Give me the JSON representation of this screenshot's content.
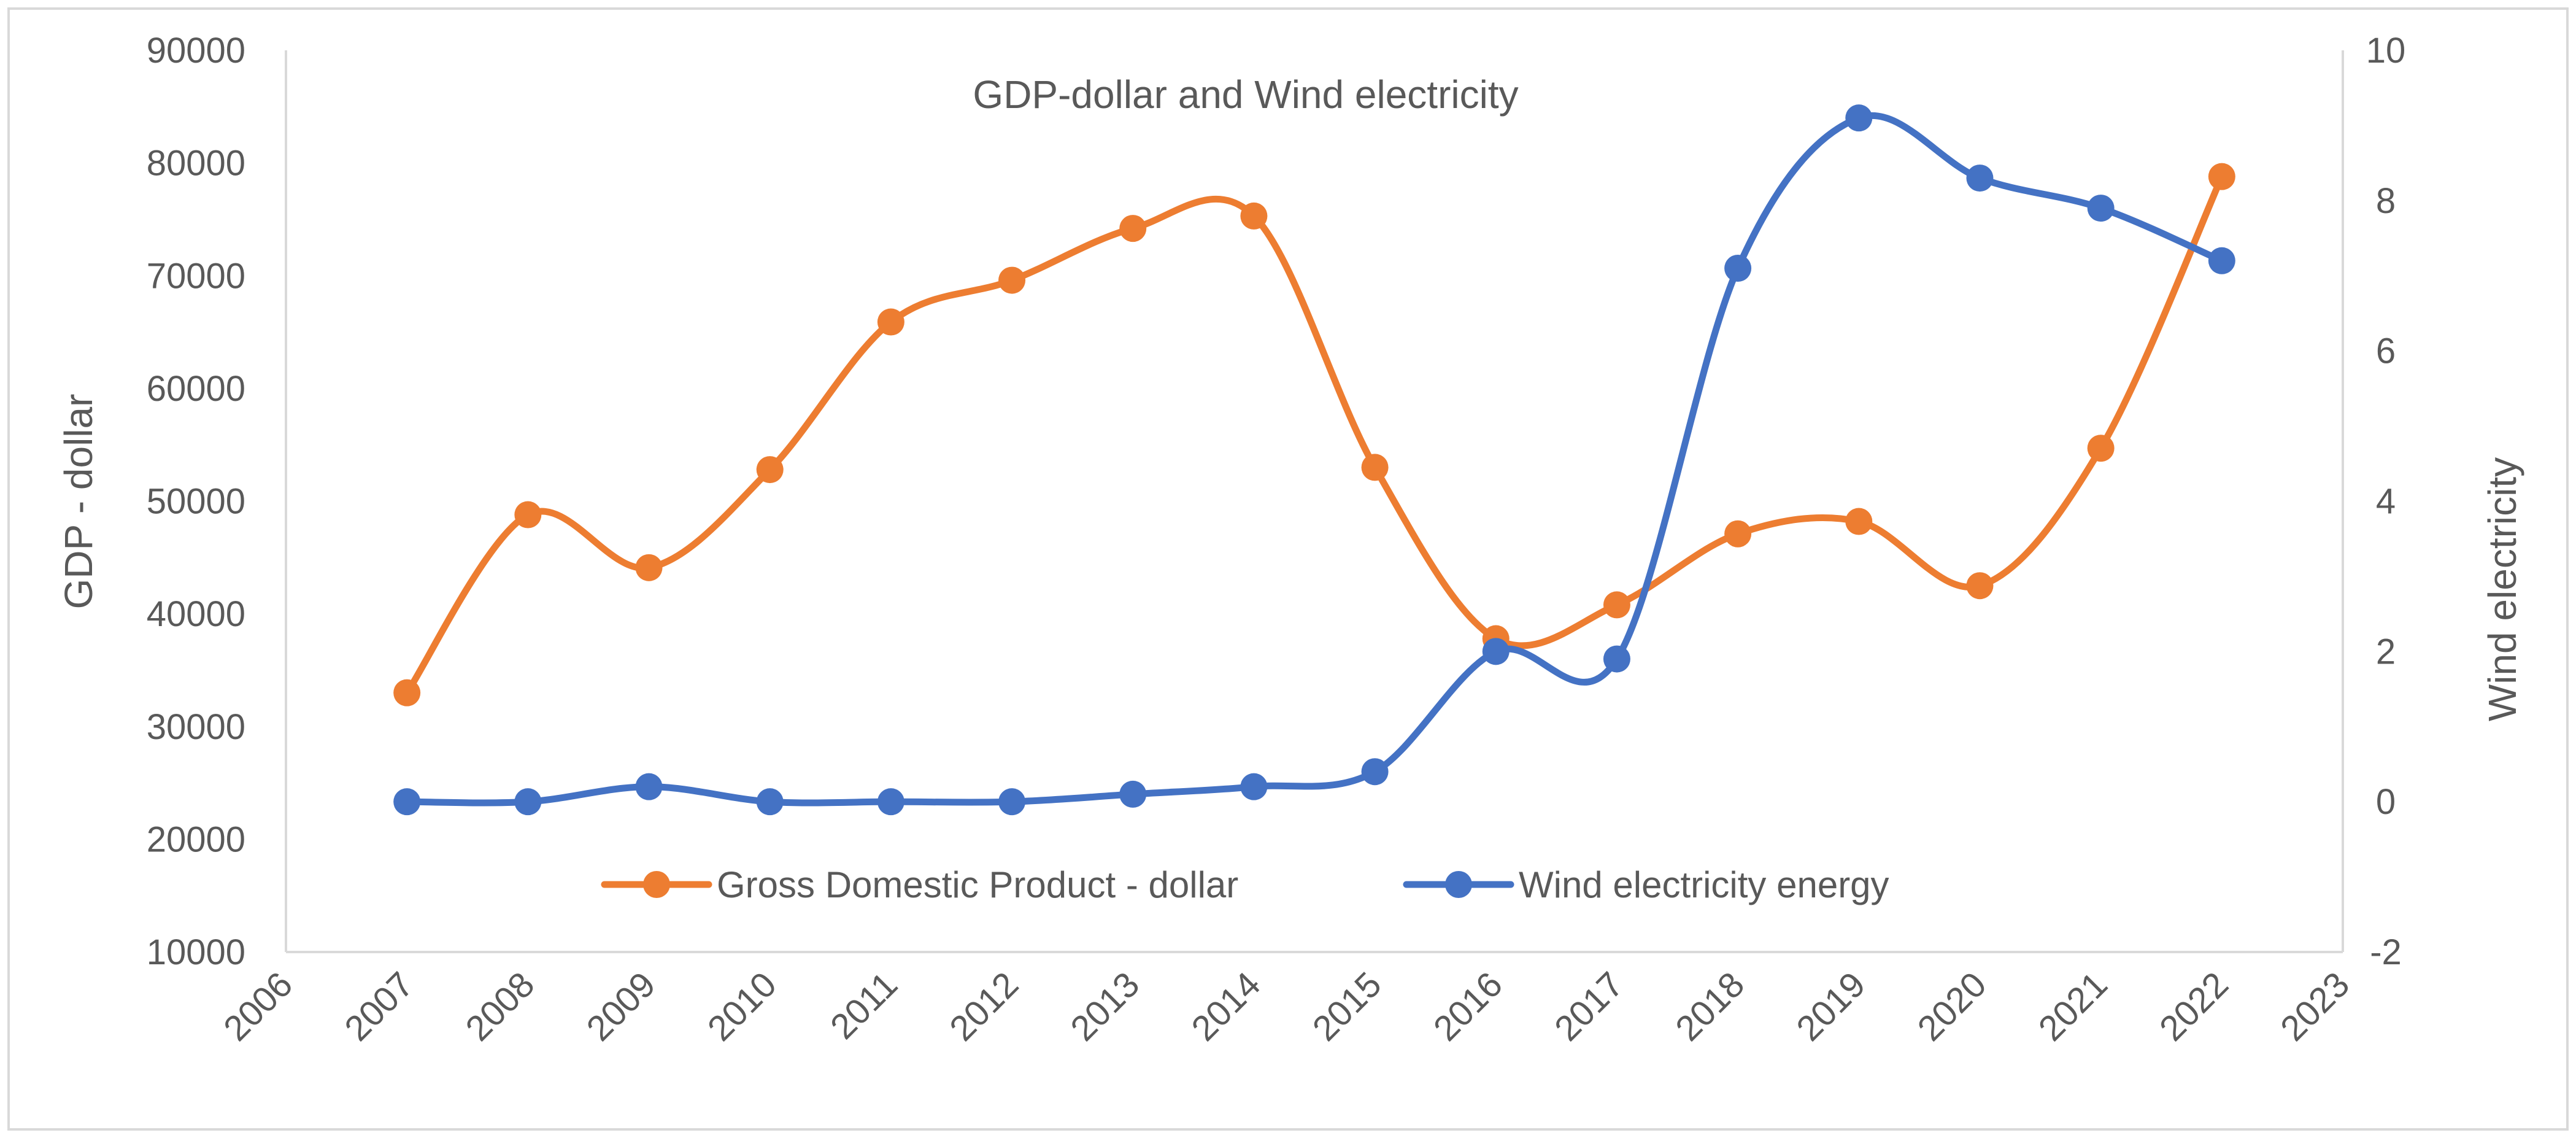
{
  "chart_data": {
    "type": "line",
    "title": "GDP-dollar and Wind electricity",
    "xlabel": "",
    "ylabel": "GDP - dollar",
    "y2label": "Wind electricity",
    "xlim": [
      2006,
      2023
    ],
    "x_ticks": [
      "2006",
      "2007",
      "2008",
      "2009",
      "2010",
      "2011",
      "2012",
      "2013",
      "2014",
      "2015",
      "2016",
      "2017",
      "2018",
      "2019",
      "2020",
      "2021",
      "2022",
      "2023"
    ],
    "ylim": [
      10000,
      90000
    ],
    "y_ticks": [
      "10000",
      "20000",
      "30000",
      "40000",
      "50000",
      "60000",
      "70000",
      "80000",
      "90000"
    ],
    "y2lim": [
      -2,
      10
    ],
    "y2_ticks": [
      "-2",
      "0",
      "2",
      "4",
      "6",
      "8",
      "10"
    ],
    "grid": false,
    "legend_position": "bottom-inside",
    "smooth": true,
    "x": [
      2007,
      2008,
      2009,
      2010,
      2011,
      2012,
      2013,
      2014,
      2015,
      2016,
      2017,
      2018,
      2019,
      2020,
      2021,
      2022
    ],
    "series": [
      {
        "name": "Gross Domestic Product - dollar",
        "axis": "left",
        "color": "#ED7D31",
        "values": [
          33000,
          48800,
          44100,
          52800,
          65900,
          69600,
          74200,
          75300,
          53000,
          37800,
          40800,
          47100,
          48200,
          42500,
          54700,
          78800
        ]
      },
      {
        "name": "Wind electricity energy",
        "axis": "right",
        "color": "#4472C4",
        "values": [
          0,
          0,
          0.2,
          0,
          0,
          0,
          0.1,
          0.2,
          0.4,
          2.0,
          1.9,
          7.1,
          9.1,
          8.3,
          7.9,
          7.2
        ]
      }
    ]
  }
}
